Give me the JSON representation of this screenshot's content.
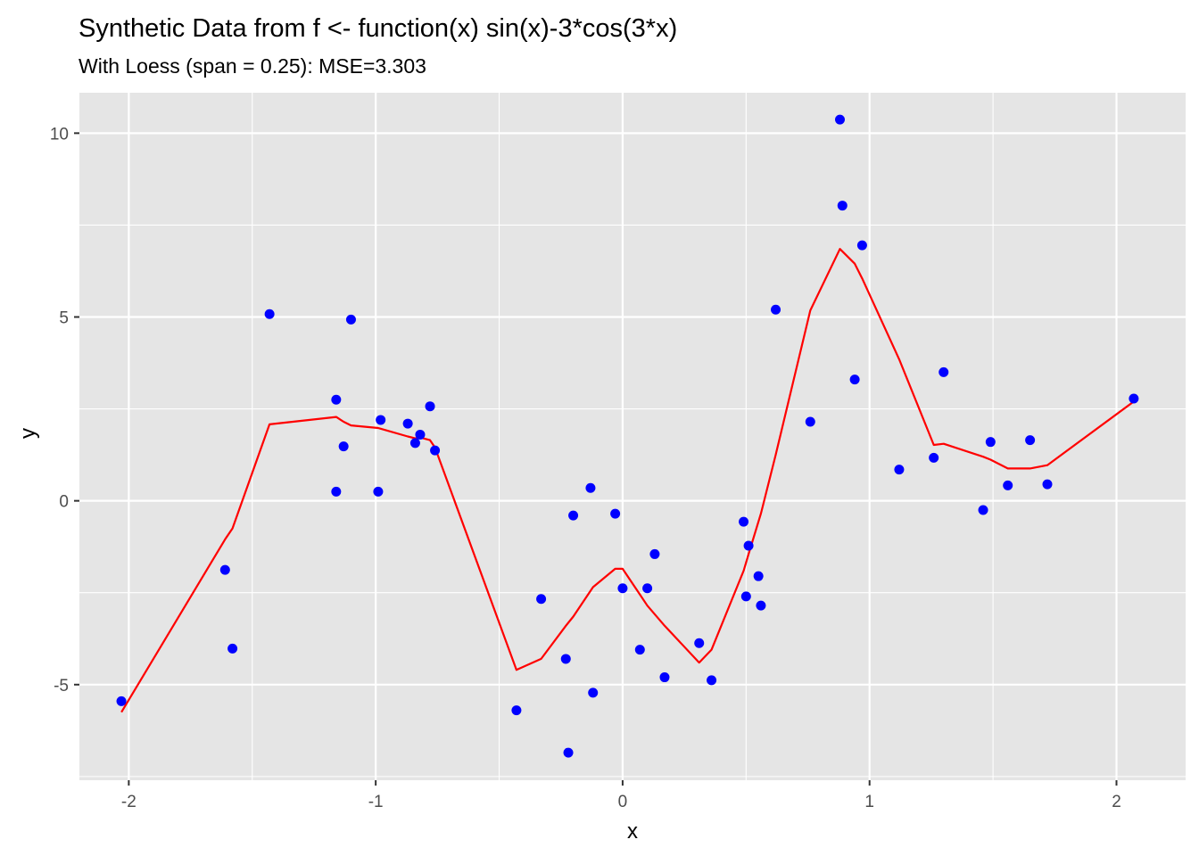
{
  "chart_data": {
    "type": "scatter",
    "title": "Synthetic Data from f <- function(x) sin(x)-3*cos(3*x)",
    "subtitle": "With Loess  (span = 0.25): MSE=3.303",
    "xlabel": "x",
    "ylabel": "y",
    "xlim": [
      -2.2,
      2.28
    ],
    "ylim": [
      -7.6,
      11.1
    ],
    "x_ticks": [
      -2,
      -1,
      0,
      1,
      2
    ],
    "x_tick_labels": [
      "-2",
      "-1",
      "0",
      "1",
      "2"
    ],
    "y_ticks": [
      -5,
      0,
      5,
      10
    ],
    "y_tick_labels": [
      "-5",
      "0",
      "5",
      "10"
    ],
    "x_minor_breaks": [
      -1.5,
      -0.5,
      0.5,
      1.5
    ],
    "y_minor_breaks": [
      -7.5,
      -2.5,
      2.5,
      7.5
    ],
    "grid": true,
    "panel_background": "#e5e5e5",
    "grid_color": "#ffffff",
    "point_color": "#0000ff",
    "line_color": "#ff0000",
    "points": [
      [
        -2.03,
        -5.45
      ],
      [
        -1.61,
        -1.88
      ],
      [
        -1.58,
        -4.02
      ],
      [
        -1.43,
        5.08
      ],
      [
        -1.16,
        2.75
      ],
      [
        -1.16,
        0.25
      ],
      [
        -1.13,
        1.48
      ],
      [
        -1.1,
        4.93
      ],
      [
        -0.99,
        0.25
      ],
      [
        -0.98,
        2.2
      ],
      [
        -0.87,
        2.1
      ],
      [
        -0.84,
        1.57
      ],
      [
        -0.82,
        1.8
      ],
      [
        -0.78,
        2.57
      ],
      [
        -0.76,
        1.37
      ],
      [
        -0.43,
        -5.7
      ],
      [
        -0.33,
        -2.67
      ],
      [
        -0.23,
        -4.3
      ],
      [
        -0.22,
        -6.85
      ],
      [
        -0.2,
        -0.4
      ],
      [
        -0.13,
        0.35
      ],
      [
        -0.12,
        -5.22
      ],
      [
        -0.03,
        -0.35
      ],
      [
        0.0,
        -2.38
      ],
      [
        0.07,
        -4.05
      ],
      [
        0.1,
        -2.38
      ],
      [
        0.13,
        -1.45
      ],
      [
        0.17,
        -4.8
      ],
      [
        0.31,
        -3.87
      ],
      [
        0.36,
        -4.88
      ],
      [
        0.49,
        -0.57
      ],
      [
        0.5,
        -2.6
      ],
      [
        0.51,
        -1.22
      ],
      [
        0.55,
        -2.05
      ],
      [
        0.56,
        -2.85
      ],
      [
        0.62,
        5.2
      ],
      [
        0.76,
        2.15
      ],
      [
        0.88,
        10.37
      ],
      [
        0.89,
        8.03
      ],
      [
        0.94,
        3.3
      ],
      [
        0.97,
        6.95
      ],
      [
        1.12,
        0.85
      ],
      [
        1.26,
        1.17
      ],
      [
        1.3,
        3.5
      ],
      [
        1.46,
        -0.25
      ],
      [
        1.49,
        1.6
      ],
      [
        1.56,
        0.42
      ],
      [
        1.65,
        1.65
      ],
      [
        1.72,
        0.45
      ],
      [
        2.07,
        2.78
      ]
    ],
    "loess_line": [
      [
        -2.03,
        -5.75
      ],
      [
        -1.61,
        -1.05
      ],
      [
        -1.58,
        -0.75
      ],
      [
        -1.43,
        2.08
      ],
      [
        -1.16,
        2.28
      ],
      [
        -1.13,
        2.15
      ],
      [
        -1.1,
        2.05
      ],
      [
        -0.99,
        1.98
      ],
      [
        -0.98,
        1.96
      ],
      [
        -0.87,
        1.75
      ],
      [
        -0.84,
        1.7
      ],
      [
        -0.82,
        1.72
      ],
      [
        -0.78,
        1.65
      ],
      [
        -0.76,
        1.45
      ],
      [
        -0.43,
        -4.6
      ],
      [
        -0.33,
        -4.3
      ],
      [
        -0.23,
        -3.4
      ],
      [
        -0.2,
        -3.15
      ],
      [
        -0.12,
        -2.35
      ],
      [
        -0.03,
        -1.85
      ],
      [
        0.0,
        -1.85
      ],
      [
        0.07,
        -2.55
      ],
      [
        0.1,
        -2.85
      ],
      [
        0.17,
        -3.4
      ],
      [
        0.31,
        -4.4
      ],
      [
        0.36,
        -4.05
      ],
      [
        0.49,
        -1.9
      ],
      [
        0.51,
        -1.45
      ],
      [
        0.56,
        -0.35
      ],
      [
        0.62,
        1.25
      ],
      [
        0.76,
        5.18
      ],
      [
        0.88,
        6.85
      ],
      [
        0.94,
        6.45
      ],
      [
        0.97,
        6.05
      ],
      [
        1.12,
        3.85
      ],
      [
        1.26,
        1.52
      ],
      [
        1.3,
        1.55
      ],
      [
        1.46,
        1.2
      ],
      [
        1.49,
        1.12
      ],
      [
        1.56,
        0.88
      ],
      [
        1.65,
        0.88
      ],
      [
        1.72,
        0.97
      ],
      [
        2.07,
        2.7
      ]
    ]
  }
}
